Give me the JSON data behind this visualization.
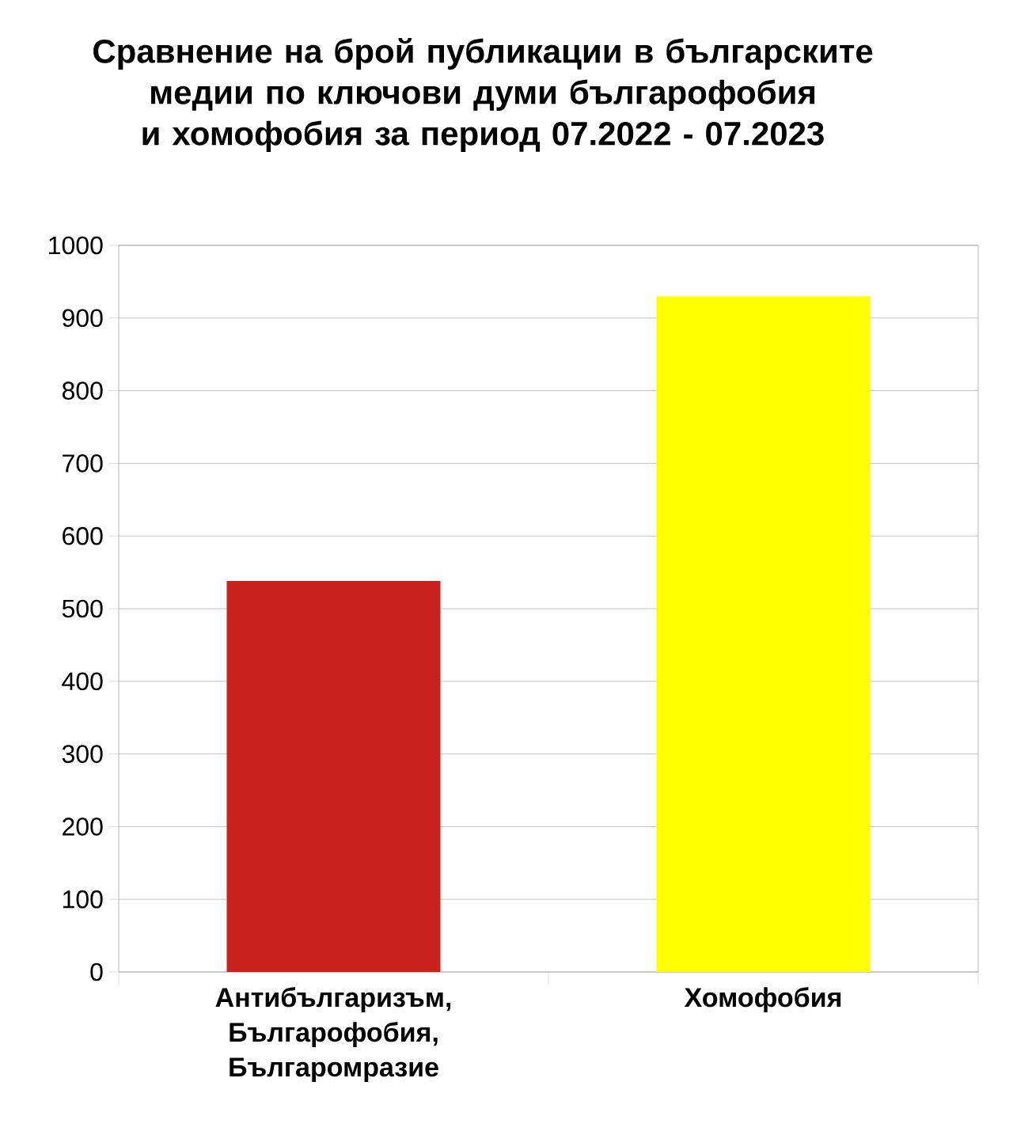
{
  "chart_data": {
    "type": "bar",
    "title": "Сравнение на брой публикации в българските медии по ключови думи българофобия и хомофобия за период 07.2022 - 07.2023",
    "categories": [
      "Антибългаризъм, Българофобия, Българомразие",
      "Хомофобия"
    ],
    "values": [
      538,
      930
    ],
    "colors": [
      "#c9211e",
      "#ffff00"
    ],
    "ylim": [
      0,
      1000
    ],
    "yticks": [
      0,
      100,
      200,
      300,
      400,
      500,
      600,
      700,
      800,
      900,
      1000
    ],
    "grid": "y"
  }
}
